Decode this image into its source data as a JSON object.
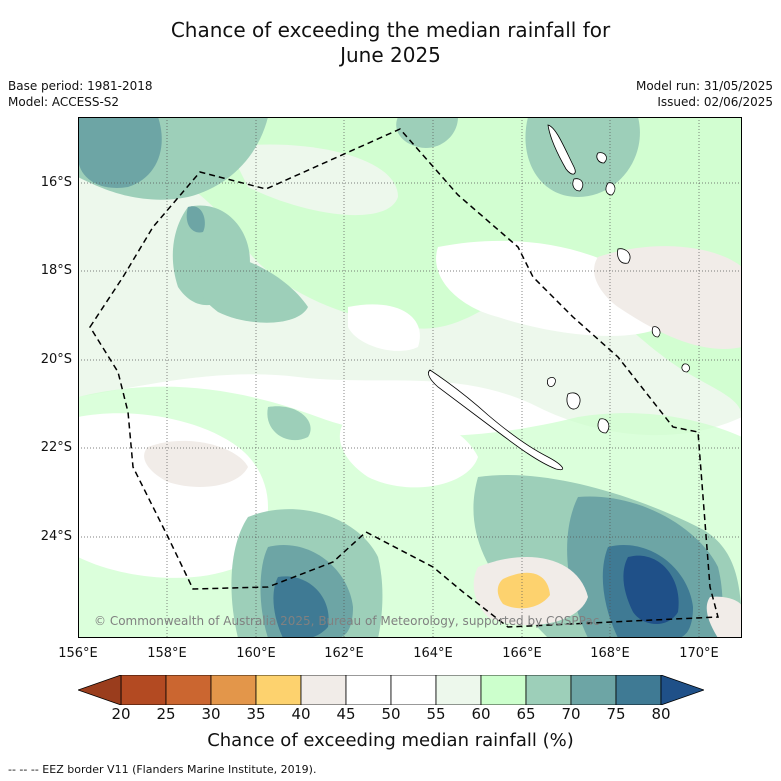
{
  "title": {
    "line1": "Chance of exceeding the median rainfall for",
    "line2": "June 2025"
  },
  "meta": {
    "base_period": "Base period: 1981-2018",
    "model": "Model: ACCESS-S2",
    "model_run": "Model run: 31/05/2025",
    "issued": "Issued: 02/06/2025"
  },
  "lat_labels": [
    "16°S",
    "18°S",
    "20°S",
    "22°S",
    "24°S"
  ],
  "lon_labels": [
    "156°E",
    "158°E",
    "160°E",
    "162°E",
    "164°E",
    "166°E",
    "168°E",
    "170°E"
  ],
  "copyright": "© Commonwealth of Australia 2025, Bureau of Meteorology, supported by COSPPac",
  "colorbar": {
    "title": "Chance of exceeding median rainfall (%)",
    "ticks": [
      "20",
      "25",
      "30",
      "35",
      "40",
      "45",
      "50",
      "55",
      "60",
      "65",
      "70",
      "75",
      "80"
    ],
    "colors": [
      "#b34a22",
      "#cb6630",
      "#e3964a",
      "#fdd26e",
      "#f1ece8",
      "#ffffff",
      "#ffffff",
      "#edf8ec",
      "#ccffcc",
      "#9dcfb9",
      "#6da5a5",
      "#3f7a94"
    ],
    "under_color": "#9a3d1d",
    "over_color": "#1f5088"
  },
  "footnote": "--  --  -- EEZ border V11 (Flanders Marine Institute, 2019)."
}
